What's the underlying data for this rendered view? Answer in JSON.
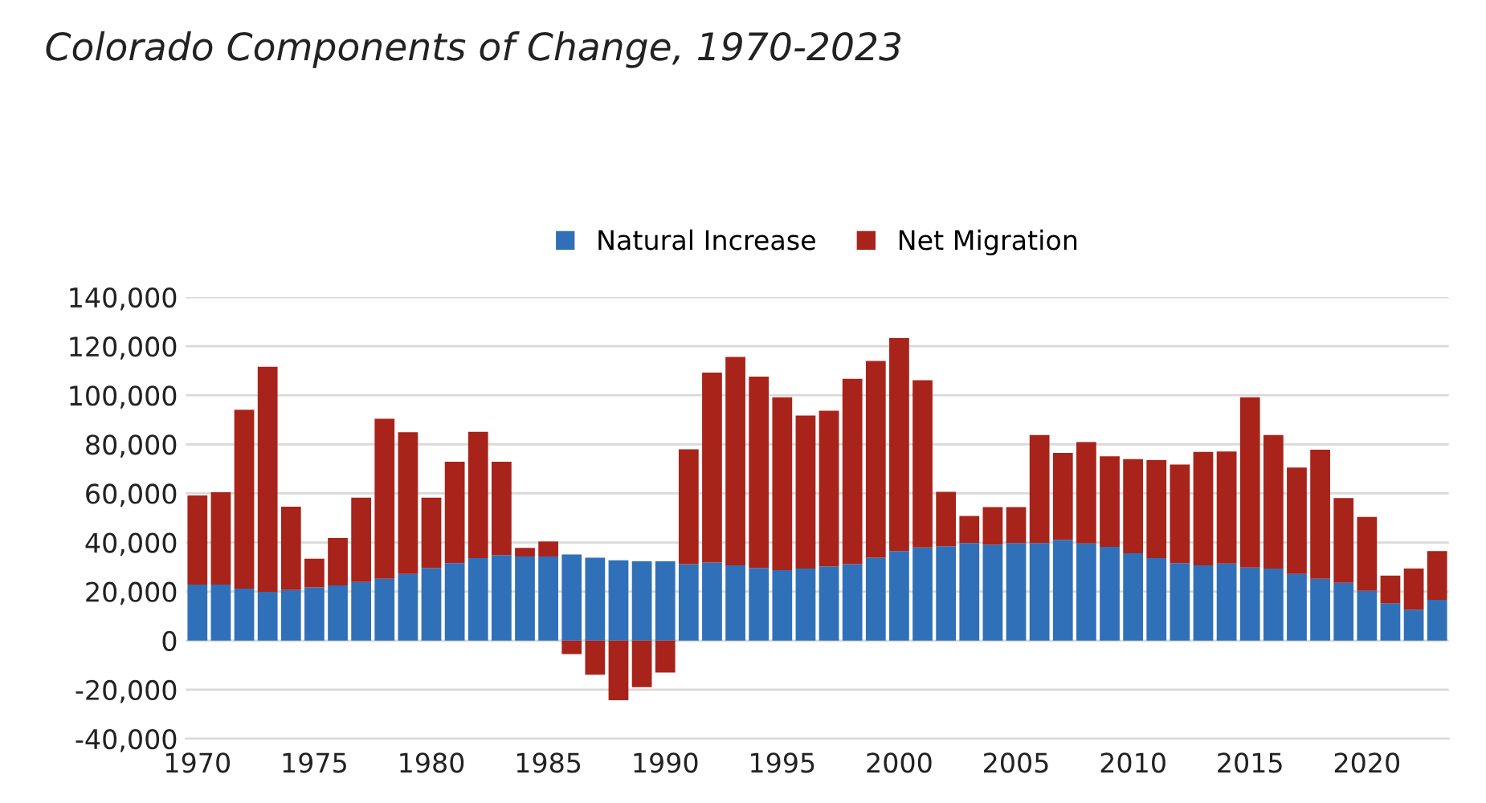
{
  "chart_data": {
    "type": "bar",
    "title": "Colorado Components of Change, 1970-2023",
    "stacked": true,
    "x": [
      1970,
      1971,
      1972,
      1973,
      1974,
      1975,
      1976,
      1977,
      1978,
      1979,
      1980,
      1981,
      1982,
      1983,
      1984,
      1985,
      1986,
      1987,
      1988,
      1989,
      1990,
      1991,
      1992,
      1993,
      1994,
      1995,
      1996,
      1997,
      1998,
      1999,
      2000,
      2001,
      2002,
      2003,
      2004,
      2005,
      2006,
      2007,
      2008,
      2009,
      2010,
      2011,
      2012,
      2013,
      2014,
      2015,
      2016,
      2017,
      2018,
      2019,
      2020,
      2021,
      2022,
      2023
    ],
    "series": [
      {
        "name": "Natural Increase",
        "color": "#3070b8",
        "values": [
          22800,
          22800,
          21200,
          19900,
          20600,
          21700,
          22500,
          23900,
          25200,
          27200,
          29600,
          31600,
          33600,
          34900,
          34300,
          34300,
          35100,
          33800,
          32700,
          32300,
          32300,
          31200,
          31800,
          30700,
          29600,
          28700,
          29400,
          30300,
          31200,
          33800,
          36500,
          38000,
          38500,
          39800,
          39100,
          39800,
          39800,
          41100,
          39600,
          38200,
          35600,
          33600,
          31600,
          30700,
          31400,
          29800,
          29400,
          27200,
          25200,
          23600,
          20300,
          15200,
          12600,
          16600
        ]
      },
      {
        "name": "Net Migration",
        "color": "#a8231a",
        "values": [
          36400,
          37700,
          72900,
          91700,
          34000,
          11700,
          19300,
          34400,
          65200,
          57700,
          28700,
          41300,
          51500,
          38000,
          3500,
          6100,
          -5500,
          -13900,
          -24300,
          -19000,
          -13000,
          46800,
          77400,
          84900,
          78000,
          70500,
          62300,
          63400,
          75500,
          80200,
          86800,
          68100,
          22100,
          11000,
          15300,
          14600,
          44000,
          35400,
          41300,
          36900,
          38400,
          40000,
          40200,
          46200,
          45700,
          69400,
          54400,
          43300,
          52600,
          34500,
          30100,
          11300,
          16800,
          19900
        ]
      }
    ],
    "xlim": [
      1969.5,
      2023.5
    ],
    "xticks": [
      1970,
      1975,
      1980,
      1985,
      1990,
      1995,
      2000,
      2005,
      2010,
      2015,
      2020
    ],
    "ylim": [
      -40000,
      140000
    ],
    "yticks": [
      {
        "value": -40000,
        "label": "-40,000"
      },
      {
        "value": -20000,
        "label": "-20,000"
      },
      {
        "value": 0,
        "label": "0"
      },
      {
        "value": 20000,
        "label": "20,000"
      },
      {
        "value": 40000,
        "label": "40,000"
      },
      {
        "value": 60000,
        "label": "60,000"
      },
      {
        "value": 80000,
        "label": "80,000"
      },
      {
        "value": 100000,
        "label": "100,000"
      },
      {
        "value": 120000,
        "label": "120,000"
      },
      {
        "value": 140000,
        "label": "140,000"
      }
    ],
    "grid": "y",
    "legend": "top"
  }
}
